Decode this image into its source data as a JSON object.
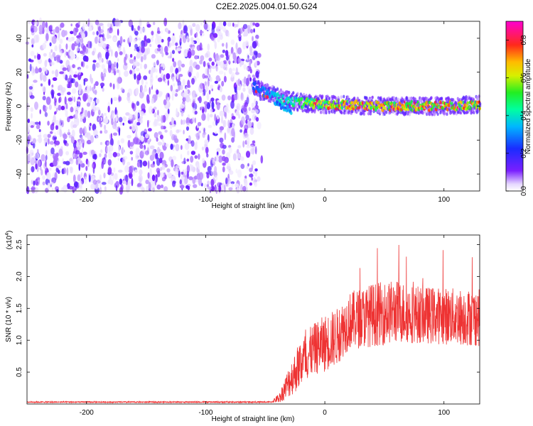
{
  "figure": {
    "title": "C2E2.2025.004.01.50.G24"
  },
  "chart_data": [
    {
      "type": "heatmap",
      "title": "C2E2.2025.004.01.50.G24",
      "xlabel": "Height of straight line (km)",
      "ylabel": "Frequency (Hz)",
      "xlim": [
        -250,
        130
      ],
      "ylim": [
        -50,
        50
      ],
      "x_ticks": [
        -200,
        -100,
        0,
        100
      ],
      "y_ticks": [
        -40,
        -20,
        0,
        20,
        40
      ],
      "colorbar": {
        "label": "Normalized spectral amplitude",
        "range": [
          0.0,
          0.9
        ],
        "ticks": [
          "0.0",
          "0.2",
          "0.4",
          "0.6",
          "0.8"
        ],
        "colormap": "rainbow (white-purple-blue-cyan-green-yellow-orange-red-magenta)"
      },
      "features": {
        "noise_region_x": [
          -250,
          -55
        ],
        "noise_amplitude": "low (~0.05-0.15)",
        "signal_track": [
          {
            "x": -60,
            "f": 13
          },
          {
            "x": -55,
            "f": 9
          },
          {
            "x": -45,
            "f": 7
          },
          {
            "x": -35,
            "f": 4
          },
          {
            "x": -20,
            "f": 2
          },
          {
            "x": 0,
            "f": 1
          },
          {
            "x": 50,
            "f": 0
          },
          {
            "x": 100,
            "f": 0
          },
          {
            "x": 130,
            "f": 1
          }
        ],
        "signal_peak_amplitude": 0.85
      },
      "grid": false
    },
    {
      "type": "line",
      "xlabel": "Height of straight line (km)",
      "ylabel": "SNR (10 * v/v)",
      "y_multiplier_label": "(x10",
      "y_multiplier_exp": "4",
      "xlim": [
        -250,
        130
      ],
      "ylim": [
        0,
        2.65
      ],
      "x_ticks": [
        -200,
        -100,
        0,
        100
      ],
      "y_ticks": [
        "0.5",
        "1.0",
        "1.5",
        "2.0",
        "2.5"
      ],
      "series": [
        {
          "color": "#ee3333",
          "envelope": [
            {
              "x": -250,
              "mean": 0.03,
              "spread": 0.01
            },
            {
              "x": -45,
              "mean": 0.03,
              "spread": 0.01
            },
            {
              "x": -38,
              "mean": 0.1,
              "spread": 0.08
            },
            {
              "x": -30,
              "mean": 0.35,
              "spread": 0.25
            },
            {
              "x": -20,
              "mean": 0.65,
              "spread": 0.4
            },
            {
              "x": -10,
              "mean": 0.85,
              "spread": 0.4
            },
            {
              "x": 0,
              "mean": 0.95,
              "spread": 0.45
            },
            {
              "x": 10,
              "mean": 1.05,
              "spread": 0.45
            },
            {
              "x": 20,
              "mean": 1.3,
              "spread": 0.45
            },
            {
              "x": 40,
              "mean": 1.4,
              "spread": 0.5
            },
            {
              "x": 60,
              "mean": 1.45,
              "spread": 0.5
            },
            {
              "x": 80,
              "mean": 1.4,
              "spread": 0.45
            },
            {
              "x": 100,
              "mean": 1.38,
              "spread": 0.45
            },
            {
              "x": 130,
              "mean": 1.35,
              "spread": 0.45
            }
          ]
        }
      ],
      "grid": false
    }
  ]
}
